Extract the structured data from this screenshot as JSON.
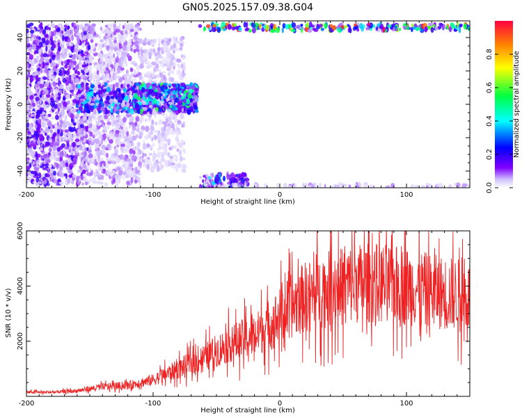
{
  "title": "GN05.2025.157.09.38.G04",
  "chart_data": [
    {
      "type": "heatmap",
      "xlabel": "Height of straight line (km)",
      "ylabel": "Frequency (Hz)",
      "xlim": [
        -200,
        150
      ],
      "ylim": [
        -50,
        50
      ],
      "xticks": [
        -200,
        -100,
        0,
        100
      ],
      "yticks": [
        -40,
        -20,
        0,
        20,
        40
      ],
      "colorbar": {
        "label": "Normalized spectral amplitude",
        "range": [
          0,
          1
        ],
        "ticks": [
          0.0,
          0.2,
          0.4,
          0.6,
          0.8
        ],
        "colors": [
          "#d0c0ff",
          "#8000ff",
          "#0000ff",
          "#00ffff",
          "#00ff40",
          "#ffff00",
          "#ff8000",
          "#ff0040"
        ]
      },
      "regions": [
        {
          "x": [
            -200,
            -150
          ],
          "y": [
            -48,
            48
          ],
          "level": 0.12
        },
        {
          "x": [
            -150,
            -110
          ],
          "y": [
            -48,
            48
          ],
          "level": 0.06
        },
        {
          "x": [
            -110,
            -75
          ],
          "y": [
            -40,
            40
          ],
          "level": 0.04
        },
        {
          "x": [
            -160,
            -65
          ],
          "y": [
            -5,
            12
          ],
          "level": 0.25
        },
        {
          "x": [
            -115,
            -65
          ],
          "y": [
            -5,
            12
          ],
          "level": 0.3
        },
        {
          "x": [
            -63,
            150
          ],
          "y": [
            44,
            48
          ],
          "level": 0.4
        },
        {
          "x": [
            -63,
            -25
          ],
          "y": [
            -50,
            -42
          ],
          "level": 0.25
        },
        {
          "x": [
            -63,
            150
          ],
          "y": [
            -50,
            -48
          ],
          "level": 0.05
        }
      ]
    },
    {
      "type": "line",
      "xlabel": "Height of straight line (km)",
      "ylabel": "SNR (10 * v/v)",
      "xlim": [
        -200,
        150
      ],
      "ylim": [
        0,
        6000
      ],
      "xticks": [
        -200,
        -100,
        0,
        100
      ],
      "yticks": [
        2000,
        4000,
        6000
      ],
      "color": "#ee2222",
      "series": [
        {
          "x": [
            -200,
            -180,
            -160,
            -140,
            -120,
            -100,
            -80,
            -60,
            -40,
            -20,
            0,
            10,
            20,
            40,
            60,
            80,
            100,
            120,
            140,
            150
          ],
          "y": [
            150,
            150,
            200,
            350,
            400,
            600,
            1000,
            1400,
            1900,
            2200,
            2900,
            3300,
            3600,
            3900,
            4100,
            4100,
            4000,
            3800,
            3700,
            3600
          ]
        }
      ]
    }
  ]
}
